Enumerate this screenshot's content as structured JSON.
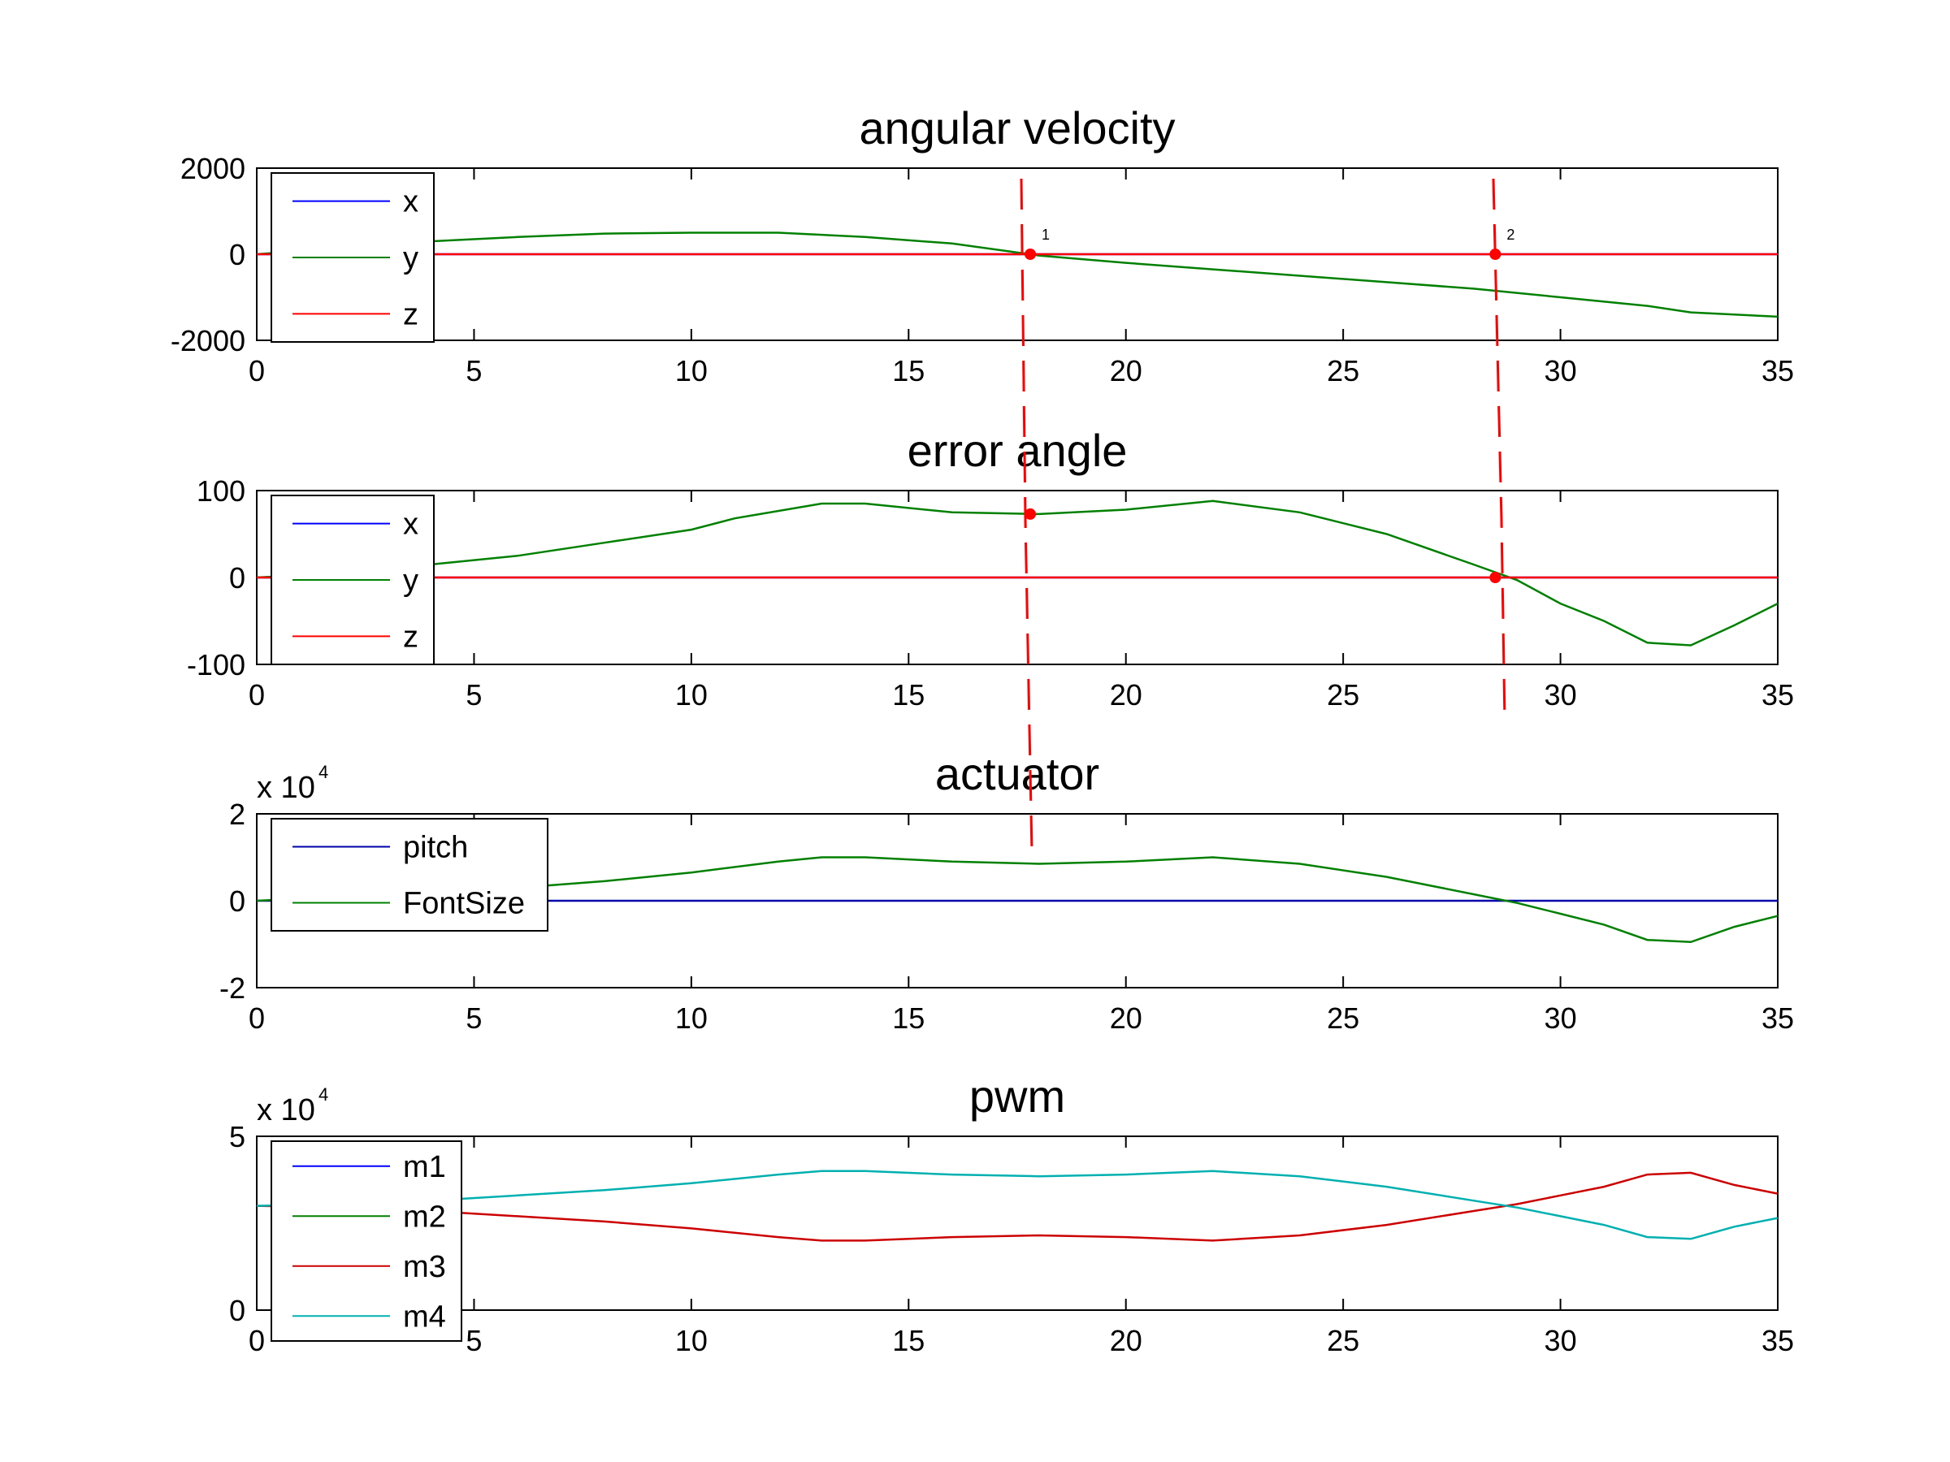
{
  "chart_data": [
    {
      "type": "line",
      "title": "angular velocity",
      "xlabel": "",
      "ylabel": "",
      "xlim": [
        0,
        35
      ],
      "ylim": [
        -2000,
        2000
      ],
      "xticks": [
        "0",
        "5",
        "10",
        "15",
        "20",
        "25",
        "30",
        "35"
      ],
      "yticks": [
        "-2000",
        "0",
        "2000"
      ],
      "legend_position": "top-left",
      "series": [
        {
          "name": "x",
          "color": "#0000ff",
          "x": [
            0,
            5,
            10,
            15,
            20,
            25,
            30,
            35
          ],
          "y": [
            0,
            0,
            0,
            0,
            0,
            0,
            0,
            0
          ]
        },
        {
          "name": "y",
          "color": "#008000",
          "x": [
            0,
            2,
            4,
            6,
            8,
            10,
            12,
            14,
            16,
            18,
            20,
            22,
            24,
            26,
            28,
            30,
            32,
            33,
            35
          ],
          "y": [
            0,
            150,
            300,
            400,
            480,
            500,
            500,
            400,
            250,
            -30,
            -200,
            -350,
            -500,
            -650,
            -800,
            -1000,
            -1200,
            -1350,
            -1450
          ]
        },
        {
          "name": "z",
          "color": "#ff0000",
          "x": [
            0,
            5,
            10,
            15,
            20,
            25,
            30,
            35
          ],
          "y": [
            0,
            0,
            0,
            0,
            0,
            0,
            0,
            0
          ]
        }
      ],
      "annotations": [
        {
          "label": "1",
          "x": 17.8,
          "y": 0
        },
        {
          "label": "2",
          "x": 28.5,
          "y": 0
        }
      ]
    },
    {
      "type": "line",
      "title": "error angle",
      "xlabel": "",
      "ylabel": "",
      "xlim": [
        0,
        35
      ],
      "ylim": [
        -100,
        100
      ],
      "xticks": [
        "0",
        "5",
        "10",
        "15",
        "20",
        "25",
        "30",
        "35"
      ],
      "yticks": [
        "-100",
        "0",
        "100"
      ],
      "legend_position": "top-left",
      "series": [
        {
          "name": "x",
          "color": "#0000ff",
          "x": [
            0,
            35
          ],
          "y": [
            0,
            0
          ]
        },
        {
          "name": "y",
          "color": "#008000",
          "x": [
            0,
            2,
            4,
            6,
            8,
            10,
            11,
            13,
            14,
            16,
            18,
            20,
            22,
            24,
            26,
            28,
            29,
            30,
            31,
            32,
            33,
            34,
            35
          ],
          "y": [
            0,
            5,
            15,
            25,
            40,
            55,
            68,
            85,
            85,
            75,
            73,
            78,
            88,
            75,
            50,
            15,
            -3,
            -30,
            -50,
            -75,
            -78,
            -55,
            -30
          ]
        },
        {
          "name": "z",
          "color": "#ff0000",
          "x": [
            0,
            35
          ],
          "y": [
            0,
            0
          ]
        }
      ],
      "annotations": [
        {
          "label": "",
          "x": 17.8,
          "y": 73
        },
        {
          "label": "",
          "x": 28.5,
          "y": 0
        }
      ]
    },
    {
      "type": "line",
      "title": "actuator",
      "xlabel": "",
      "ylabel": "",
      "y_exponent": "x 10",
      "y_exponent_power": "4",
      "xlim": [
        0,
        35
      ],
      "ylim": [
        -2,
        2
      ],
      "xticks": [
        "0",
        "5",
        "10",
        "15",
        "20",
        "25",
        "30",
        "35"
      ],
      "yticks": [
        "-2",
        "0",
        "2"
      ],
      "legend_position": "top-left",
      "series": [
        {
          "name": "pitch",
          "color": "#0000aa",
          "x": [
            0,
            35
          ],
          "y": [
            0,
            0
          ]
        },
        {
          "name": "FontSize",
          "color": "#008000",
          "x": [
            0,
            2,
            4,
            6,
            8,
            10,
            12,
            13,
            14,
            16,
            18,
            20,
            22,
            24,
            26,
            28,
            29,
            30,
            31,
            32,
            33,
            34,
            35
          ],
          "y": [
            0,
            0.1,
            0.2,
            0.3,
            0.45,
            0.65,
            0.9,
            1.0,
            1.0,
            0.9,
            0.85,
            0.9,
            1.0,
            0.85,
            0.55,
            0.15,
            -0.05,
            -0.3,
            -0.55,
            -0.9,
            -0.95,
            -0.6,
            -0.35
          ]
        }
      ]
    },
    {
      "type": "line",
      "title": "pwm",
      "xlabel": "",
      "ylabel": "",
      "y_exponent": "x 10",
      "y_exponent_power": "4",
      "xlim": [
        0,
        35
      ],
      "ylim": [
        0,
        5
      ],
      "xticks": [
        "0",
        "5",
        "10",
        "15",
        "20",
        "25",
        "30",
        "35"
      ],
      "yticks": [
        "0",
        "5"
      ],
      "legend_position": "top-left",
      "series": [
        {
          "name": "m1",
          "color": "#0000ff",
          "x": [],
          "y": []
        },
        {
          "name": "m2",
          "color": "#008000",
          "x": [],
          "y": []
        },
        {
          "name": "m3",
          "color": "#cc0000",
          "x": [
            0,
            2,
            4,
            6,
            8,
            10,
            12,
            13,
            14,
            16,
            18,
            20,
            22,
            24,
            26,
            28,
            29,
            30,
            31,
            32,
            33,
            34,
            35
          ],
          "y": [
            3.0,
            2.95,
            2.85,
            2.7,
            2.55,
            2.35,
            2.1,
            2.0,
            2.0,
            2.1,
            2.15,
            2.1,
            2.0,
            2.15,
            2.45,
            2.85,
            3.05,
            3.3,
            3.55,
            3.9,
            3.95,
            3.6,
            3.35
          ]
        },
        {
          "name": "m4",
          "color": "#00b0b0",
          "x": [
            0,
            2,
            4,
            6,
            8,
            10,
            12,
            13,
            14,
            16,
            18,
            20,
            22,
            24,
            26,
            28,
            29,
            30,
            31,
            32,
            33,
            34,
            35
          ],
          "y": [
            3.0,
            3.05,
            3.15,
            3.3,
            3.45,
            3.65,
            3.9,
            4.0,
            4.0,
            3.9,
            3.85,
            3.9,
            4.0,
            3.85,
            3.55,
            3.15,
            2.95,
            2.7,
            2.45,
            2.1,
            2.05,
            2.4,
            2.65
          ]
        }
      ]
    }
  ]
}
